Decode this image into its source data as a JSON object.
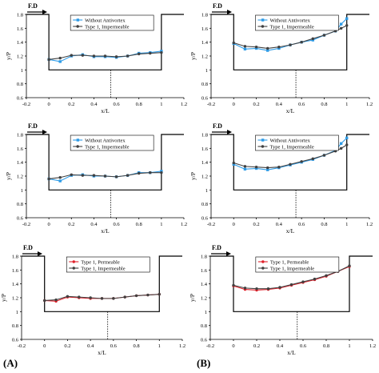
{
  "panel_labels": {
    "left": "(A)",
    "right": "(B)"
  },
  "colors": {
    "blue": "#2E9BE6",
    "dark": "#404040",
    "red": "#E0202A",
    "frame": "#000000"
  },
  "chart_data": [
    {
      "id": "a1",
      "type": "line",
      "xlabel": "x/L",
      "ylabel": "y/P",
      "flow_label": "F.D",
      "xlim": [
        -0.2,
        1.2
      ],
      "ylim": [
        0.6,
        1.8
      ],
      "xticks": [
        "-0.2",
        "0",
        "0.2",
        "0.4",
        "0.6",
        "0.8",
        "1",
        "1.2"
      ],
      "yticks": [
        "0.6",
        "0.8",
        "1",
        "1.2",
        "1.4",
        "1.6",
        "1.8"
      ],
      "x": [
        0,
        0.1,
        0.2,
        0.3,
        0.4,
        0.5,
        0.6,
        0.7,
        0.8,
        0.9,
        1
      ],
      "series": [
        {
          "name": "Without Antivortex",
          "color": "blue",
          "marker": "square",
          "values": [
            1.15,
            1.12,
            1.2,
            1.22,
            1.19,
            1.19,
            1.18,
            1.2,
            1.24,
            1.25,
            1.27
          ]
        },
        {
          "name": "Type 1, Impermeable",
          "color": "dark",
          "marker": "circle",
          "values": [
            1.15,
            1.17,
            1.21,
            1.21,
            1.2,
            1.2,
            1.19,
            1.2,
            1.23,
            1.24,
            1.25
          ]
        }
      ]
    },
    {
      "id": "b1",
      "type": "line",
      "xlabel": "x/L",
      "ylabel": "y/P",
      "flow_label": "F.D",
      "xlim": [
        -0.2,
        1.2
      ],
      "ylim": [
        0.6,
        1.8
      ],
      "xticks": [
        "-0.2",
        "0",
        "0.2",
        "0.4",
        "0.6",
        "0.8",
        "1",
        "1.2"
      ],
      "yticks": [
        "0.6",
        "0.8",
        "1",
        "1.2",
        "1.4",
        "1.6",
        "1.8"
      ],
      "x": [
        0,
        0.1,
        0.2,
        0.3,
        0.4,
        0.5,
        0.6,
        0.7,
        0.8,
        0.9,
        0.95,
        1
      ],
      "series": [
        {
          "name": "Without Antivortex",
          "color": "blue",
          "marker": "square",
          "values": [
            1.38,
            1.3,
            1.31,
            1.28,
            1.31,
            1.36,
            1.4,
            1.43,
            1.5,
            1.56,
            1.66,
            1.74
          ]
        },
        {
          "name": "Type 1, Impermeable",
          "color": "dark",
          "marker": "circle",
          "values": [
            1.39,
            1.34,
            1.33,
            1.31,
            1.33,
            1.36,
            1.4,
            1.45,
            1.5,
            1.56,
            1.6,
            1.64
          ]
        }
      ]
    },
    {
      "id": "a2",
      "type": "line",
      "xlabel": "x/L",
      "ylabel": "y/P",
      "flow_label": "F.D",
      "xlim": [
        -0.2,
        1.2
      ],
      "ylim": [
        0.6,
        1.8
      ],
      "xticks": [
        "-0.2",
        "0",
        "0.2",
        "0.4",
        "0.6",
        "0.8",
        "1",
        "1.2"
      ],
      "yticks": [
        "0.6",
        "0.8",
        "1",
        "1.2",
        "1.4",
        "1.6",
        "1.8"
      ],
      "x": [
        0,
        0.1,
        0.2,
        0.3,
        0.4,
        0.5,
        0.6,
        0.7,
        0.8,
        0.9,
        1
      ],
      "series": [
        {
          "name": "Without Antivortex",
          "color": "blue",
          "marker": "square",
          "values": [
            1.16,
            1.13,
            1.21,
            1.22,
            1.2,
            1.2,
            1.19,
            1.21,
            1.25,
            1.25,
            1.27
          ]
        },
        {
          "name": "Type 1, Impermeable",
          "color": "dark",
          "marker": "circle",
          "values": [
            1.16,
            1.18,
            1.22,
            1.21,
            1.21,
            1.2,
            1.19,
            1.21,
            1.24,
            1.25,
            1.25
          ]
        }
      ]
    },
    {
      "id": "b2",
      "type": "line",
      "xlabel": "x/L",
      "ylabel": "y/P",
      "flow_label": "F.D",
      "xlim": [
        -0.2,
        1.2
      ],
      "ylim": [
        0.6,
        1.8
      ],
      "xticks": [
        "-0.2",
        "0",
        "0.2",
        "0.4",
        "0.6",
        "0.8",
        "1",
        "1.2"
      ],
      "yticks": [
        "0.6",
        "0.8",
        "1",
        "1.2",
        "1.4",
        "1.6",
        "1.8"
      ],
      "x": [
        0,
        0.1,
        0.2,
        0.3,
        0.4,
        0.5,
        0.6,
        0.7,
        0.8,
        0.9,
        0.95,
        1
      ],
      "series": [
        {
          "name": "Without Antivortex",
          "color": "blue",
          "marker": "square",
          "values": [
            1.37,
            1.3,
            1.31,
            1.29,
            1.32,
            1.36,
            1.4,
            1.44,
            1.5,
            1.57,
            1.67,
            1.75
          ]
        },
        {
          "name": "Type 1, Impermeable",
          "color": "dark",
          "marker": "circle",
          "values": [
            1.39,
            1.34,
            1.33,
            1.32,
            1.33,
            1.37,
            1.41,
            1.45,
            1.5,
            1.56,
            1.6,
            1.65
          ]
        }
      ]
    },
    {
      "id": "a3",
      "type": "line",
      "xlabel": "x/L",
      "ylabel": "y/P",
      "flow_label": "F.D",
      "xlim": [
        -0.2,
        1.2
      ],
      "ylim": [
        0.6,
        1.8
      ],
      "xticks": [
        "-0.2",
        "0",
        "0.2",
        "0.4",
        "0.6",
        "0.8",
        "1",
        "1.2"
      ],
      "yticks": [
        "0.6",
        "0.8",
        "1",
        "1.2",
        "1.4",
        "1.6",
        "1.8"
      ],
      "x": [
        0,
        0.1,
        0.2,
        0.3,
        0.4,
        0.5,
        0.6,
        0.7,
        0.8,
        0.9,
        1
      ],
      "series": [
        {
          "name": "Type 1, Permeable",
          "color": "red",
          "marker": "circle",
          "values": [
            1.16,
            1.15,
            1.21,
            1.2,
            1.19,
            1.19,
            1.19,
            1.21,
            1.23,
            1.24,
            1.25
          ]
        },
        {
          "name": "Type 1, Impermeable",
          "color": "dark",
          "marker": "circle",
          "values": [
            1.16,
            1.17,
            1.22,
            1.21,
            1.2,
            1.19,
            1.19,
            1.21,
            1.23,
            1.24,
            1.25
          ]
        }
      ]
    },
    {
      "id": "b3",
      "type": "line",
      "xlabel": "x/L",
      "ylabel": "y/P",
      "flow_label": "F.D",
      "xlim": [
        -0.2,
        1.2
      ],
      "ylim": [
        0.6,
        1.8
      ],
      "xticks": [
        "-0.2",
        "0",
        "0.2",
        "0.4",
        "0.6",
        "0.8",
        "1",
        "1.2"
      ],
      "yticks": [
        "0.6",
        "0.8",
        "1",
        "1.2",
        "1.4",
        "1.6",
        "1.8"
      ],
      "x": [
        0,
        0.1,
        0.2,
        0.3,
        0.4,
        0.5,
        0.6,
        0.7,
        0.8,
        0.9,
        1
      ],
      "series": [
        {
          "name": "Type 1, Permeable",
          "color": "red",
          "marker": "circle",
          "values": [
            1.37,
            1.32,
            1.31,
            1.32,
            1.34,
            1.38,
            1.42,
            1.46,
            1.51,
            1.58,
            1.65
          ]
        },
        {
          "name": "Type 1, Impermeable",
          "color": "dark",
          "marker": "circle",
          "values": [
            1.38,
            1.34,
            1.33,
            1.33,
            1.35,
            1.39,
            1.43,
            1.47,
            1.52,
            1.58,
            1.66
          ]
        }
      ]
    }
  ]
}
